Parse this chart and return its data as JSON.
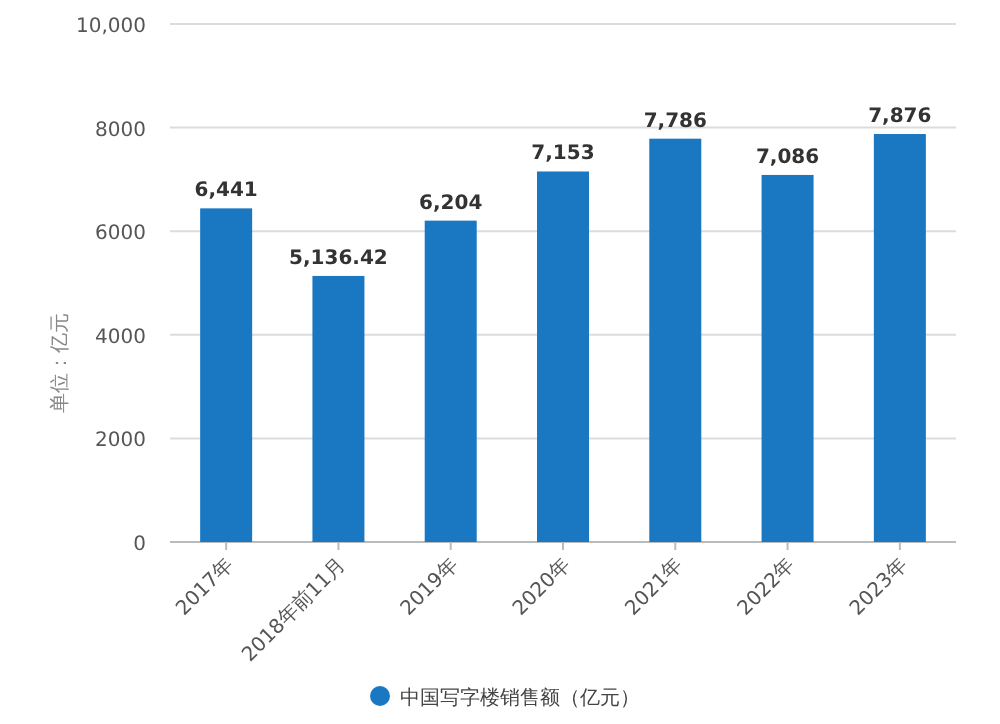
{
  "chart_data": {
    "type": "bar",
    "ylabel": "单位：亿元",
    "categories": [
      "2017年",
      "2018年前11月",
      "2019年",
      "2020年",
      "2021年",
      "2022年",
      "2023年"
    ],
    "series": [
      {
        "name": "中国写字楼销售额（亿元）",
        "color": "#1a78c2",
        "values": [
          6441,
          5136.42,
          6204,
          7153,
          7786,
          7086,
          7876
        ],
        "value_labels": [
          "6,441",
          "5,136.42",
          "6,204",
          "7,153",
          "7,786",
          "7,086",
          "7,876"
        ]
      }
    ],
    "ylim": [
      0,
      10000
    ],
    "yticks": [
      0,
      2000,
      4000,
      6000,
      8000,
      {
        "value": 10000,
        "label": "10,000"
      }
    ],
    "grid": "y",
    "legend": "bottom"
  }
}
